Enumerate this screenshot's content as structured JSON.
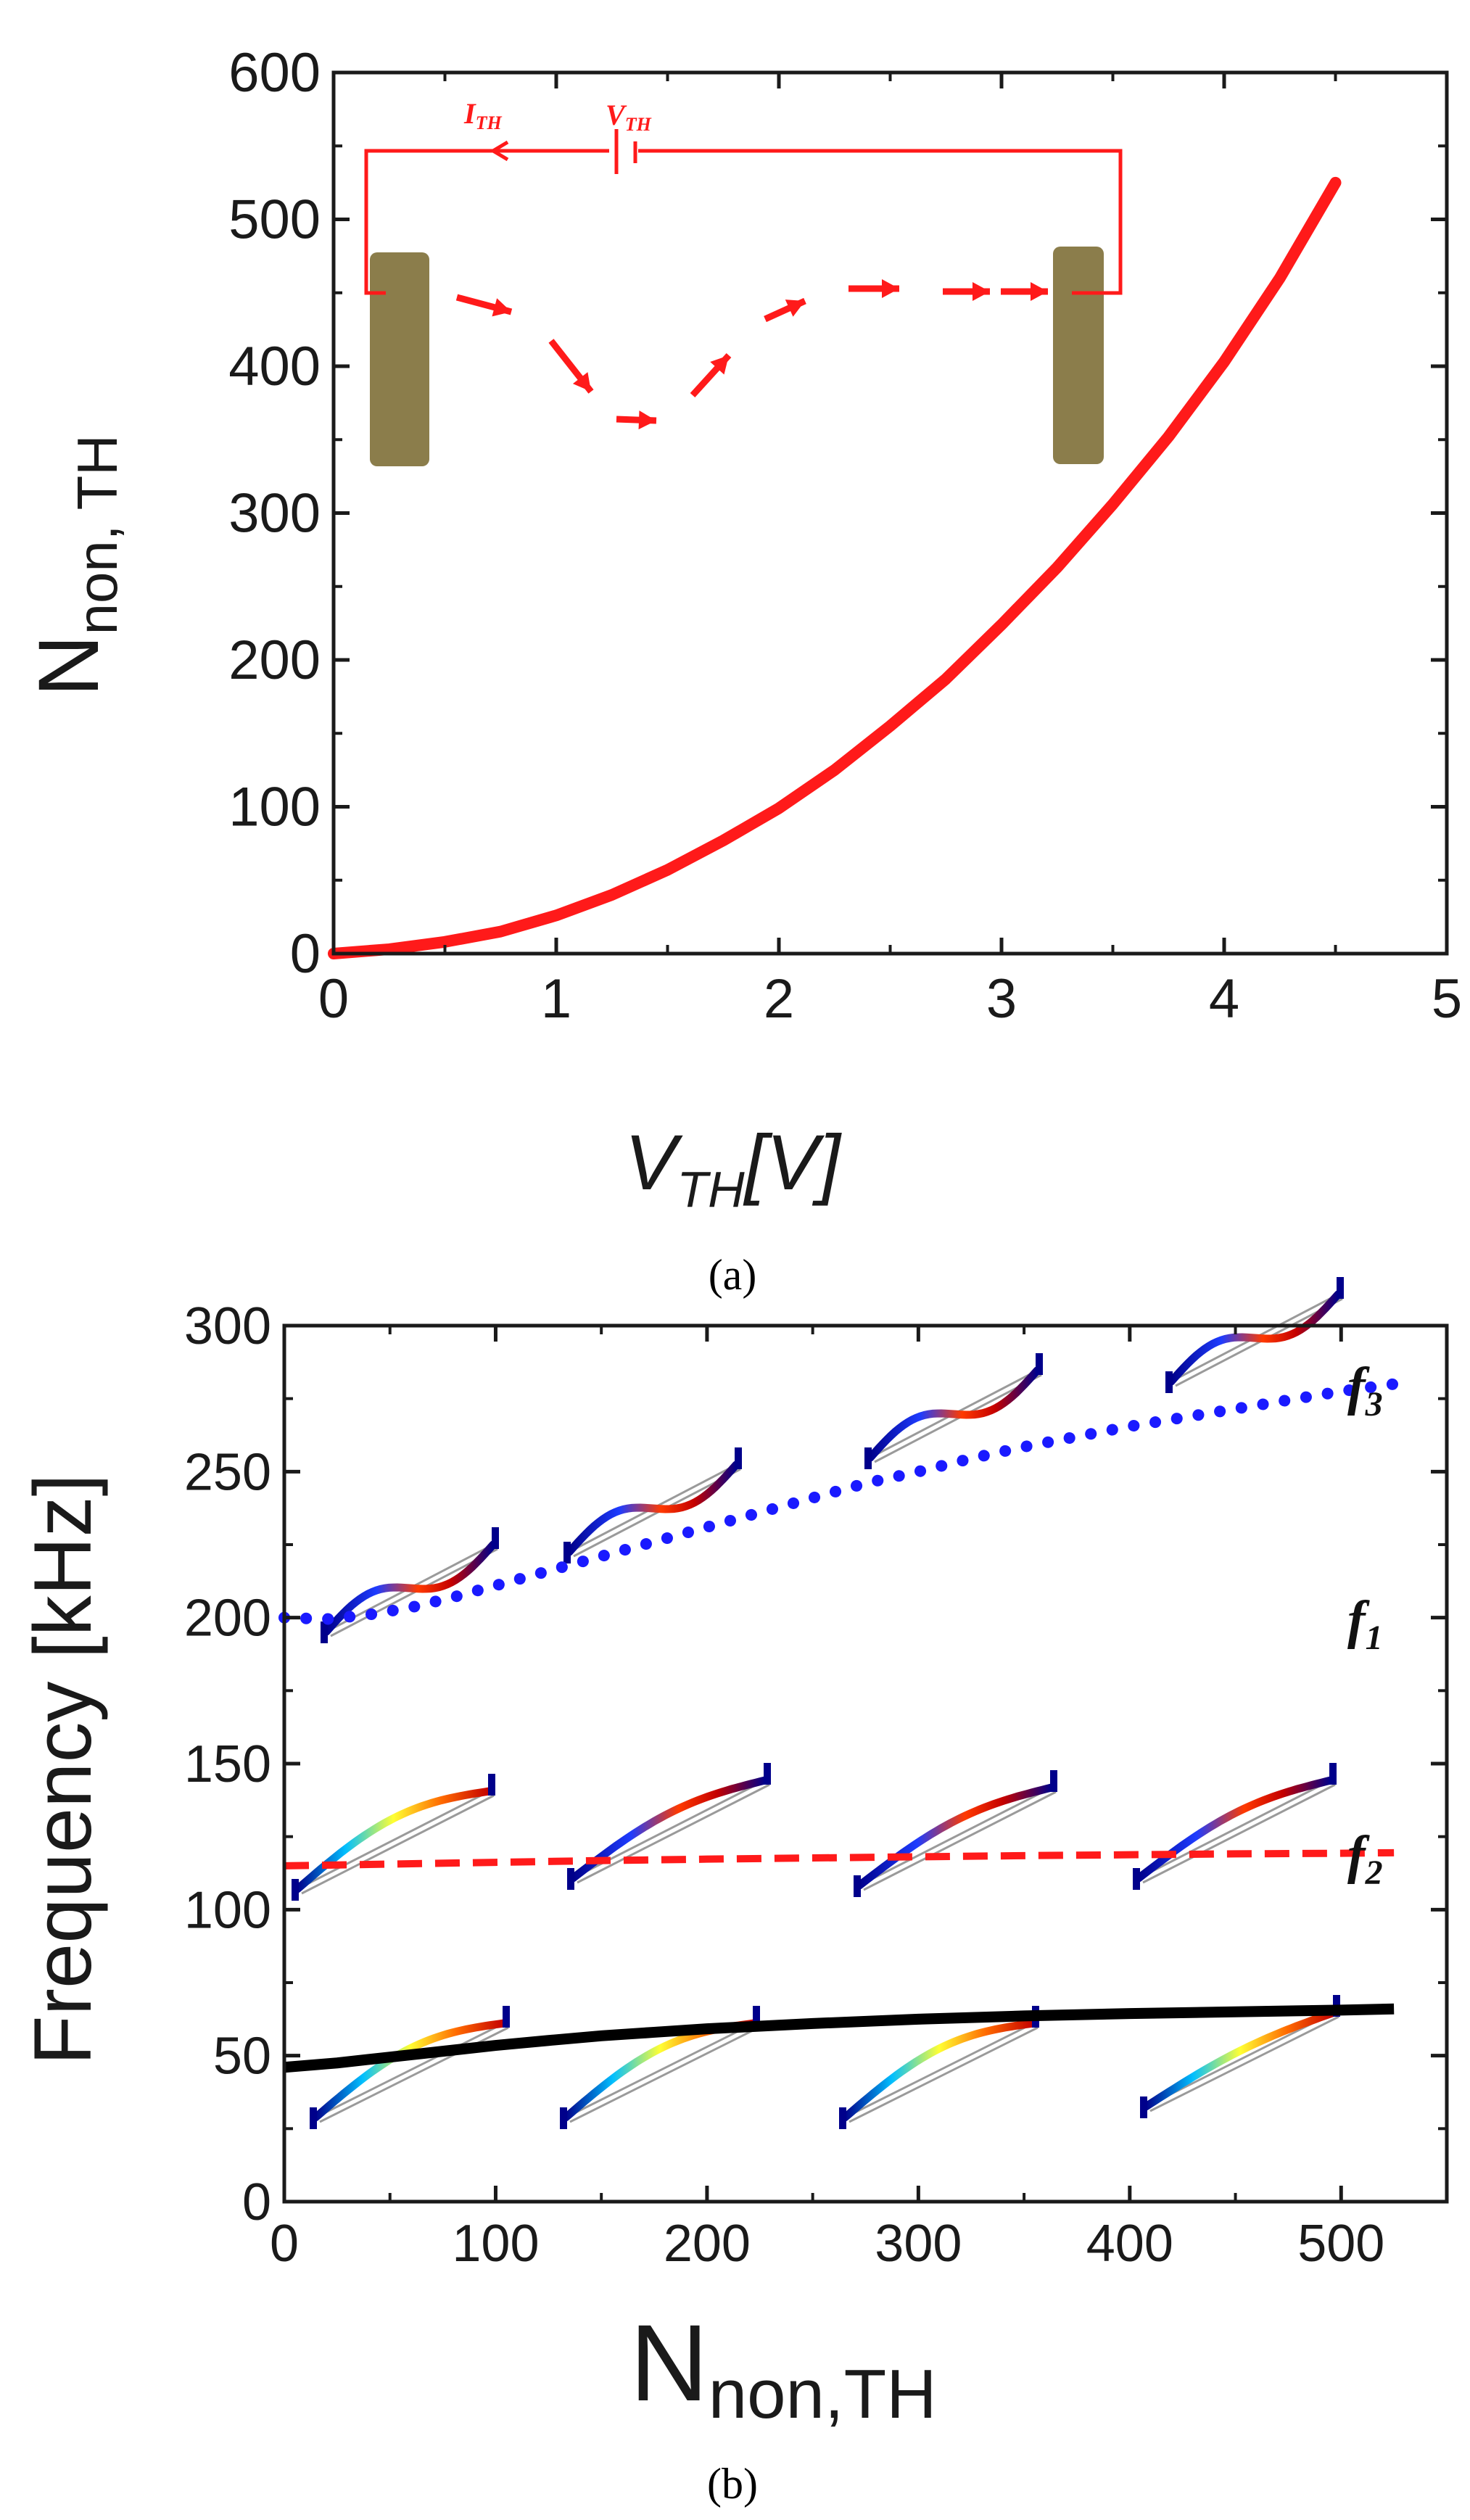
{
  "panel_labels": {
    "a": "(a)",
    "b": "(b)"
  },
  "colors": {
    "axis": "#1a1a1a",
    "curve_a": "#ff1a1a",
    "inset": "#ff1a1a",
    "electrode": "#8b7d4b",
    "f1": "#000000",
    "f2": "#ff1a1a",
    "f3": "#1a1aff"
  },
  "inset": {
    "current_label": "I",
    "current_sub": "TH",
    "voltage_label": "V",
    "voltage_sub": "TH"
  },
  "chart_data": [
    {
      "type": "line",
      "xlabel": "V",
      "xlabel_sub": "TH",
      "xlabel_unit": "[V]",
      "ylabel": "N",
      "ylabel_sub": "non, TH",
      "xlim": [
        0,
        5
      ],
      "ylim": [
        0,
        600
      ],
      "xticks": [
        "0",
        "1",
        "2",
        "3",
        "4",
        "5"
      ],
      "yticks": [
        "0",
        "100",
        "200",
        "300",
        "400",
        "500",
        "600"
      ],
      "series": [
        {
          "style": "solid",
          "color": "#ff1a1a",
          "x": [
            0,
            0.25,
            0.5,
            0.75,
            1.0,
            1.25,
            1.5,
            1.75,
            2.0,
            2.25,
            2.5,
            2.75,
            3.0,
            3.25,
            3.5,
            3.75,
            4.0,
            4.25,
            4.5
          ],
          "y": [
            0,
            3,
            8,
            15,
            26,
            40,
            57,
            77,
            99,
            125,
            155,
            187,
            224,
            263,
            306,
            352,
            403,
            460,
            525
          ]
        }
      ]
    },
    {
      "type": "line",
      "xlabel": "N",
      "xlabel_sub": "non,TH",
      "ylabel": "Frequency [kHz]",
      "xlim": [
        0,
        550
      ],
      "ylim": [
        0,
        300
      ],
      "xticks": [
        "0",
        "100",
        "200",
        "300",
        "400",
        "500"
      ],
      "yticks": [
        "0",
        "50",
        "100",
        "150",
        "200",
        "250",
        "300"
      ],
      "series": [
        {
          "name": "f1",
          "label": "f",
          "label_sub": "1",
          "style": "solid",
          "color": "#000000",
          "x": [
            0,
            25,
            50,
            75,
            100,
            125,
            150,
            175,
            200,
            250,
            300,
            350,
            400,
            450,
            500,
            525
          ],
          "y": [
            46,
            47.5,
            49.5,
            51.5,
            53.5,
            55.2,
            56.8,
            58,
            59.2,
            61,
            62.5,
            63.6,
            64.4,
            65,
            65.6,
            66
          ]
        },
        {
          "name": "f2",
          "label": "f",
          "label_sub": "2",
          "style": "dashed",
          "color": "#ff1a1a",
          "x": [
            0,
            50,
            100,
            150,
            200,
            250,
            300,
            350,
            400,
            450,
            500,
            525
          ],
          "y": [
            115,
            115.6,
            116.2,
            116.8,
            117.3,
            117.7,
            118.1,
            118.5,
            118.8,
            119.1,
            119.3,
            119.5
          ]
        },
        {
          "name": "f3",
          "label": "f",
          "label_sub": "3",
          "style": "dotted",
          "color": "#1a1aff",
          "x": [
            0,
            20,
            40,
            60,
            80,
            100,
            125,
            150,
            175,
            200,
            225,
            250,
            275,
            300,
            325,
            350,
            375,
            400,
            425,
            450,
            475,
            500,
            525
          ],
          "y": [
            200,
            199.5,
            201,
            203.5,
            207,
            211,
            216,
            221,
            226,
            231,
            236,
            241,
            246,
            250,
            254.5,
            258.5,
            262,
            265.5,
            268.5,
            271.5,
            274.5,
            277.5,
            280
          ]
        }
      ]
    }
  ]
}
